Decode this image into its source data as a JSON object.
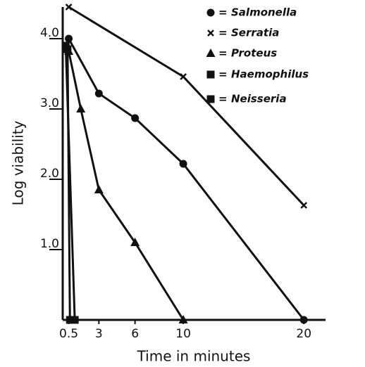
{
  "chart_data": {
    "type": "line",
    "xlabel": "Time in minutes",
    "ylabel": "Log viability",
    "xlim": [
      0,
      21.8
    ],
    "ylim": [
      0,
      4.45
    ],
    "xticks": [
      0.5,
      3,
      6,
      10,
      20
    ],
    "yticks": [
      {
        "value": 1,
        "label": "1.0"
      },
      {
        "value": 2,
        "label": "2.0"
      },
      {
        "value": 3,
        "label": "3.0"
      },
      {
        "value": 4,
        "label": "4.0"
      }
    ],
    "legend": "upper right",
    "legend_separator": "=",
    "series": [
      {
        "name": "Salmonella",
        "color": "#111111",
        "marker": "circle",
        "x": [
          0.5,
          3,
          6,
          10,
          20
        ],
        "values": [
          4.0,
          3.22,
          2.87,
          2.22,
          0
        ]
      },
      {
        "name": "Serratia",
        "color": "#111111",
        "marker": "x",
        "x": [
          0.5,
          10,
          20
        ],
        "values": [
          4.45,
          3.46,
          1.63
        ]
      },
      {
        "name": "Proteus",
        "color": "#111111",
        "marker": "triangle",
        "x": [
          0.5,
          1.5,
          3,
          6,
          10
        ],
        "values": [
          3.82,
          3.0,
          1.85,
          1.1,
          0
        ]
      },
      {
        "name": "Haemophilus",
        "color": "#111111",
        "marker": "square",
        "x": [
          0.25,
          1
        ],
        "values": [
          3.9,
          0
        ]
      },
      {
        "name": "Neisseria",
        "color": "#111111",
        "marker": "square",
        "x": [
          0.4,
          0.6
        ],
        "values": [
          3.85,
          0
        ]
      }
    ]
  }
}
